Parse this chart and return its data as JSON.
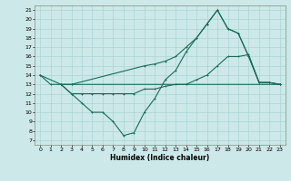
{
  "bg_color": "#cce8e8",
  "grid_color": "#aad4d4",
  "line_color": "#1a6b5a",
  "xlabel": "Humidex (Indice chaleur)",
  "xlim": [
    -0.5,
    23.5
  ],
  "ylim": [
    6.5,
    21.5
  ],
  "xticks": [
    0,
    1,
    2,
    3,
    4,
    5,
    6,
    7,
    8,
    9,
    10,
    11,
    12,
    13,
    14,
    15,
    16,
    17,
    18,
    19,
    20,
    21,
    22,
    23
  ],
  "yticks": [
    7,
    8,
    9,
    10,
    11,
    12,
    13,
    14,
    15,
    16,
    17,
    18,
    19,
    20,
    21
  ],
  "line1_x": [
    0,
    1,
    2,
    3,
    23
  ],
  "line1_y": [
    14,
    13,
    13,
    13,
    13
  ],
  "line2_x": [
    0,
    2,
    3,
    4,
    5,
    6,
    7,
    8,
    9,
    10,
    11,
    12,
    13,
    14,
    15,
    16,
    17,
    18,
    19,
    20,
    21,
    22,
    23
  ],
  "line2_y": [
    14,
    13,
    12,
    11,
    10,
    10,
    9,
    7.5,
    7.8,
    10,
    11.5,
    13.5,
    14.5,
    16.5,
    18.0,
    19.5,
    21,
    19.0,
    18.5,
    16,
    13.2,
    13.2,
    13
  ],
  "line3_x": [
    2,
    3,
    10,
    11,
    12,
    13,
    14,
    15,
    16,
    17,
    18,
    19,
    20,
    21,
    22,
    23
  ],
  "line3_y": [
    13,
    13,
    15,
    15.2,
    15.5,
    16,
    17,
    18,
    19.5,
    21,
    19,
    18.5,
    16,
    13.2,
    13.2,
    13
  ],
  "line4_x": [
    2,
    3,
    4,
    5,
    6,
    7,
    8,
    9,
    10,
    11,
    12,
    13,
    14,
    15,
    16,
    17,
    18,
    19,
    20,
    21,
    22,
    23
  ],
  "line4_y": [
    13,
    12,
    12,
    12,
    12,
    12,
    12,
    12,
    12.5,
    12.5,
    12.8,
    13,
    13,
    13.5,
    14,
    15,
    16,
    16,
    16.2,
    13.2,
    13.2,
    13
  ]
}
